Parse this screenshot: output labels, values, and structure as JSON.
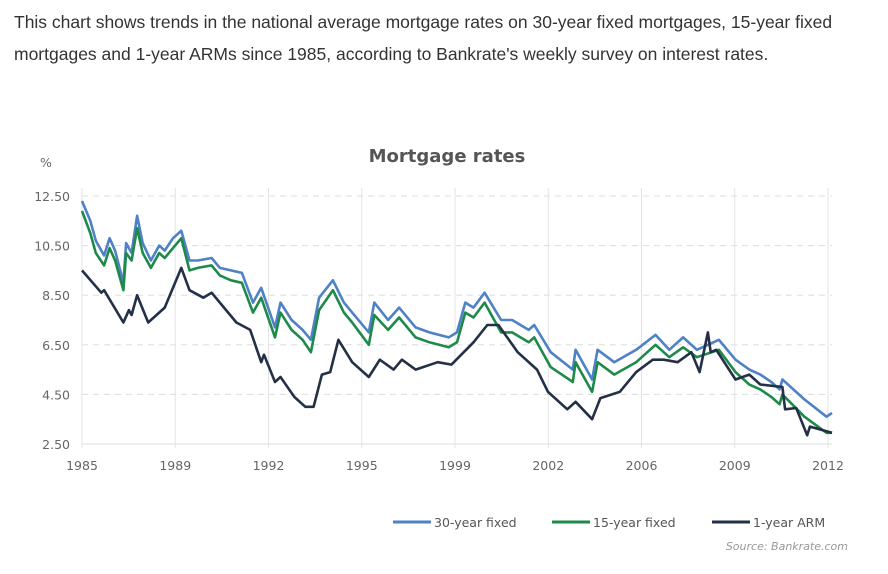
{
  "intro_text": "This chart shows trends in the national average mortgage rates on 30-year fixed mortgages, 15-year fixed mortgages and 1-year ARMs since 1985, according to Bankrate's weekly survey on interest rates.",
  "chart_data": {
    "type": "line",
    "title": "Mortgage rates",
    "ylabel": "%",
    "xlabel": "",
    "xlim": [
      1985,
      2012.2
    ],
    "ylim": [
      2.5,
      12.5
    ],
    "x_tick_labels": [
      "1985",
      "1989",
      "1992",
      "1995",
      "1999",
      "2002",
      "2006",
      "2009",
      "2012"
    ],
    "y_tick_labels": [
      "12.50",
      "10.50",
      "8.50",
      "6.50",
      "4.50",
      "2.50"
    ],
    "y_ticks": [
      12.5,
      10.5,
      8.5,
      6.5,
      4.5,
      2.5
    ],
    "grid": true,
    "legend_position": "bottom-right",
    "source": "Source: Bankrate.com",
    "series": [
      {
        "name": "30-year fixed",
        "color": "#4f81c7",
        "points": [
          [
            1985.0,
            12.3
          ],
          [
            1985.3,
            11.5
          ],
          [
            1985.5,
            10.7
          ],
          [
            1985.8,
            10.1
          ],
          [
            1986.0,
            10.8
          ],
          [
            1986.2,
            10.3
          ],
          [
            1986.5,
            9.0
          ],
          [
            1986.6,
            10.6
          ],
          [
            1986.8,
            10.2
          ],
          [
            1987.0,
            11.7
          ],
          [
            1987.2,
            10.6
          ],
          [
            1987.5,
            9.9
          ],
          [
            1987.8,
            10.5
          ],
          [
            1988.0,
            10.3
          ],
          [
            1988.3,
            10.8
          ],
          [
            1988.6,
            11.1
          ],
          [
            1988.9,
            9.9
          ],
          [
            1989.2,
            9.9
          ],
          [
            1989.7,
            10.0
          ],
          [
            1990.0,
            9.6
          ],
          [
            1990.4,
            9.5
          ],
          [
            1990.8,
            9.4
          ],
          [
            1991.2,
            8.2
          ],
          [
            1991.5,
            8.8
          ],
          [
            1992.0,
            7.2
          ],
          [
            1992.2,
            8.2
          ],
          [
            1992.6,
            7.5
          ],
          [
            1993.0,
            7.1
          ],
          [
            1993.3,
            6.7
          ],
          [
            1993.6,
            8.4
          ],
          [
            1994.1,
            9.1
          ],
          [
            1994.5,
            8.2
          ],
          [
            1994.8,
            7.8
          ],
          [
            1995.4,
            7.0
          ],
          [
            1995.6,
            8.2
          ],
          [
            1996.1,
            7.5
          ],
          [
            1996.5,
            8.0
          ],
          [
            1997.1,
            7.2
          ],
          [
            1997.6,
            7.0
          ],
          [
            1998.3,
            6.8
          ],
          [
            1998.6,
            7.0
          ],
          [
            1998.9,
            8.2
          ],
          [
            1999.2,
            8.0
          ],
          [
            1999.6,
            8.6
          ],
          [
            2000.2,
            7.5
          ],
          [
            2000.6,
            7.5
          ],
          [
            2001.2,
            7.1
          ],
          [
            2001.4,
            7.3
          ],
          [
            2002.0,
            6.2
          ],
          [
            2002.8,
            5.5
          ],
          [
            2002.9,
            6.3
          ],
          [
            2003.5,
            5.1
          ],
          [
            2003.7,
            6.3
          ],
          [
            2004.3,
            5.8
          ],
          [
            2005.1,
            6.3
          ],
          [
            2005.8,
            6.9
          ],
          [
            2006.3,
            6.3
          ],
          [
            2006.8,
            6.8
          ],
          [
            2007.3,
            6.3
          ],
          [
            2008.1,
            6.7
          ],
          [
            2008.7,
            5.9
          ],
          [
            2009.2,
            5.5
          ],
          [
            2009.6,
            5.3
          ],
          [
            2010.0,
            5.0
          ],
          [
            2010.3,
            4.7
          ],
          [
            2010.4,
            5.1
          ],
          [
            2011.2,
            4.3
          ],
          [
            2012.0,
            3.6
          ],
          [
            2012.2,
            3.75
          ]
        ]
      },
      {
        "name": "15-year fixed",
        "color": "#1e8a4a",
        "points": [
          [
            1985.0,
            11.9
          ],
          [
            1985.3,
            11.0
          ],
          [
            1985.5,
            10.2
          ],
          [
            1985.8,
            9.7
          ],
          [
            1986.0,
            10.4
          ],
          [
            1986.2,
            9.9
          ],
          [
            1986.5,
            8.7
          ],
          [
            1986.6,
            10.2
          ],
          [
            1986.8,
            9.9
          ],
          [
            1987.0,
            11.2
          ],
          [
            1987.2,
            10.2
          ],
          [
            1987.5,
            9.6
          ],
          [
            1987.8,
            10.2
          ],
          [
            1988.0,
            10.0
          ],
          [
            1988.3,
            10.4
          ],
          [
            1988.6,
            10.8
          ],
          [
            1988.9,
            9.5
          ],
          [
            1989.2,
            9.6
          ],
          [
            1989.7,
            9.7
          ],
          [
            1990.0,
            9.3
          ],
          [
            1990.4,
            9.1
          ],
          [
            1990.8,
            9.0
          ],
          [
            1991.2,
            7.8
          ],
          [
            1991.5,
            8.4
          ],
          [
            1992.0,
            6.8
          ],
          [
            1992.2,
            7.8
          ],
          [
            1992.6,
            7.1
          ],
          [
            1993.0,
            6.7
          ],
          [
            1993.3,
            6.2
          ],
          [
            1993.6,
            7.9
          ],
          [
            1994.1,
            8.7
          ],
          [
            1994.5,
            7.8
          ],
          [
            1994.8,
            7.4
          ],
          [
            1995.4,
            6.5
          ],
          [
            1995.6,
            7.7
          ],
          [
            1996.1,
            7.1
          ],
          [
            1996.5,
            7.6
          ],
          [
            1997.1,
            6.8
          ],
          [
            1997.6,
            6.6
          ],
          [
            1998.3,
            6.4
          ],
          [
            1998.6,
            6.6
          ],
          [
            1998.9,
            7.8
          ],
          [
            1999.2,
            7.6
          ],
          [
            1999.6,
            8.2
          ],
          [
            2000.2,
            7.0
          ],
          [
            2000.6,
            7.0
          ],
          [
            2001.2,
            6.6
          ],
          [
            2001.4,
            6.8
          ],
          [
            2002.0,
            5.6
          ],
          [
            2002.8,
            5.0
          ],
          [
            2002.9,
            5.8
          ],
          [
            2003.5,
            4.6
          ],
          [
            2003.7,
            5.8
          ],
          [
            2004.3,
            5.3
          ],
          [
            2005.1,
            5.8
          ],
          [
            2005.8,
            6.5
          ],
          [
            2006.3,
            6.0
          ],
          [
            2006.8,
            6.4
          ],
          [
            2007.3,
            6.0
          ],
          [
            2008.1,
            6.3
          ],
          [
            2008.7,
            5.4
          ],
          [
            2009.2,
            4.9
          ],
          [
            2009.6,
            4.7
          ],
          [
            2010.0,
            4.4
          ],
          [
            2010.3,
            4.1
          ],
          [
            2010.4,
            4.5
          ],
          [
            2011.2,
            3.6
          ],
          [
            2012.0,
            2.95
          ],
          [
            2012.2,
            2.95
          ]
        ]
      },
      {
        "name": "1-year ARM",
        "color": "#243047",
        "points": [
          [
            1985.0,
            9.5
          ],
          [
            1985.7,
            8.6
          ],
          [
            1985.8,
            8.7
          ],
          [
            1986.5,
            7.4
          ],
          [
            1986.7,
            7.9
          ],
          [
            1986.8,
            7.7
          ],
          [
            1987.0,
            8.5
          ],
          [
            1987.4,
            7.4
          ],
          [
            1988.0,
            8.0
          ],
          [
            1988.6,
            9.6
          ],
          [
            1988.9,
            8.7
          ],
          [
            1989.4,
            8.4
          ],
          [
            1989.7,
            8.6
          ],
          [
            1990.6,
            7.4
          ],
          [
            1991.1,
            7.1
          ],
          [
            1991.5,
            5.8
          ],
          [
            1991.6,
            6.1
          ],
          [
            1992.0,
            5.0
          ],
          [
            1992.2,
            5.2
          ],
          [
            1992.7,
            4.4
          ],
          [
            1993.1,
            4.0
          ],
          [
            1993.4,
            4.0
          ],
          [
            1993.7,
            5.3
          ],
          [
            1994.0,
            5.4
          ],
          [
            1994.3,
            6.7
          ],
          [
            1994.8,
            5.8
          ],
          [
            1995.4,
            5.2
          ],
          [
            1995.8,
            5.9
          ],
          [
            1996.3,
            5.5
          ],
          [
            1996.6,
            5.9
          ],
          [
            1997.1,
            5.5
          ],
          [
            1997.9,
            5.8
          ],
          [
            1998.4,
            5.7
          ],
          [
            1999.2,
            6.6
          ],
          [
            1999.7,
            7.3
          ],
          [
            2000.1,
            7.3
          ],
          [
            2000.8,
            6.2
          ],
          [
            2001.5,
            5.5
          ],
          [
            2001.9,
            4.6
          ],
          [
            2002.6,
            3.9
          ],
          [
            2002.9,
            4.2
          ],
          [
            2003.5,
            3.5
          ],
          [
            2003.8,
            4.35
          ],
          [
            2004.5,
            4.6
          ],
          [
            2005.1,
            5.4
          ],
          [
            2005.7,
            5.9
          ],
          [
            2006.1,
            5.9
          ],
          [
            2006.6,
            5.8
          ],
          [
            2007.1,
            6.2
          ],
          [
            2007.4,
            5.4
          ],
          [
            2007.7,
            7.0
          ],
          [
            2007.8,
            6.2
          ],
          [
            2008.0,
            6.3
          ],
          [
            2008.7,
            5.1
          ],
          [
            2009.2,
            5.3
          ],
          [
            2009.6,
            4.9
          ],
          [
            2010.4,
            4.8
          ],
          [
            2010.5,
            3.9
          ],
          [
            2010.9,
            3.95
          ],
          [
            2011.3,
            2.85
          ],
          [
            2011.4,
            3.2
          ],
          [
            2012.2,
            2.95
          ]
        ]
      }
    ]
  }
}
